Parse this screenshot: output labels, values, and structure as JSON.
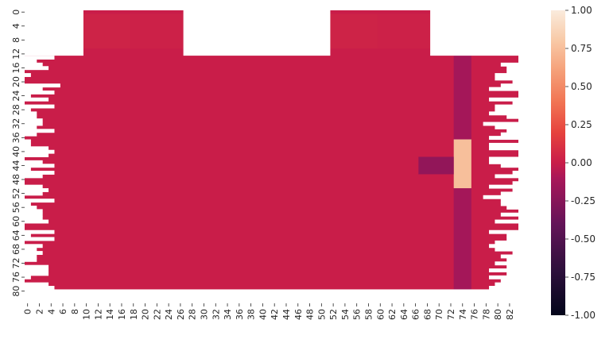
{
  "chart_data": {
    "type": "heatmap",
    "title": "",
    "xlabel": "",
    "ylabel": "",
    "n_rows": 84,
    "n_cols": 84,
    "x_ticks": [
      0,
      2,
      4,
      6,
      8,
      10,
      12,
      14,
      16,
      18,
      20,
      22,
      24,
      26,
      28,
      30,
      32,
      34,
      36,
      38,
      40,
      42,
      44,
      46,
      48,
      50,
      52,
      54,
      56,
      58,
      60,
      62,
      64,
      66,
      68,
      70,
      72,
      74,
      76,
      78,
      80,
      82
    ],
    "y_ticks": [
      0,
      4,
      8,
      12,
      16,
      20,
      24,
      28,
      32,
      36,
      40,
      44,
      48,
      52,
      56,
      60,
      64,
      68,
      72,
      76,
      80
    ],
    "colorbar": {
      "min": -1.0,
      "max": 1.0,
      "ticks": [
        "1.00",
        "0.75",
        "0.50",
        "0.25",
        "0.00",
        "-0.25",
        "-0.50",
        "-0.75",
        "-1.00"
      ],
      "colormap": "rocket"
    },
    "background_value": 0.0,
    "patches": [
      {
        "rows": [
          1,
          10
        ],
        "cols": [
          10,
          17
        ],
        "value": 0.03,
        "description": "top block"
      },
      {
        "rows": [
          1,
          10
        ],
        "cols": [
          18,
          26
        ],
        "value": 0.02,
        "description": "top block"
      },
      {
        "rows": [
          1,
          10
        ],
        "cols": [
          52,
          59
        ],
        "value": 0.03,
        "description": "top block"
      },
      {
        "rows": [
          1,
          10
        ],
        "cols": [
          60,
          68
        ],
        "value": 0.02,
        "description": "top block"
      },
      {
        "rows": [
          13,
          79
        ],
        "cols": [
          73,
          75
        ],
        "value": -0.12,
        "description": "column band"
      },
      {
        "rows": [
          37,
          50
        ],
        "cols": [
          73,
          75
        ],
        "value": 0.75,
        "description": "bright peak"
      },
      {
        "rows": [
          42,
          46
        ],
        "cols": [
          67,
          72
        ],
        "value": -0.2,
        "description": "dark spot"
      }
    ],
    "missing_value_regions": [
      {
        "rows": [
          0,
          12
        ],
        "cols": [
          0,
          9
        ]
      },
      {
        "rows": [
          0,
          12
        ],
        "cols": [
          27,
          51
        ]
      },
      {
        "rows": [
          0,
          12
        ],
        "cols": [
          69,
          83
        ]
      },
      {
        "rows": [
          13,
          79
        ],
        "cols": [
          0,
          6
        ],
        "pattern": "irregular"
      },
      {
        "rows": [
          13,
          79
        ],
        "cols": [
          77,
          83
        ],
        "pattern": "irregular"
      },
      {
        "rows": [
          80,
          83
        ],
        "cols": [
          0,
          83
        ]
      }
    ]
  }
}
